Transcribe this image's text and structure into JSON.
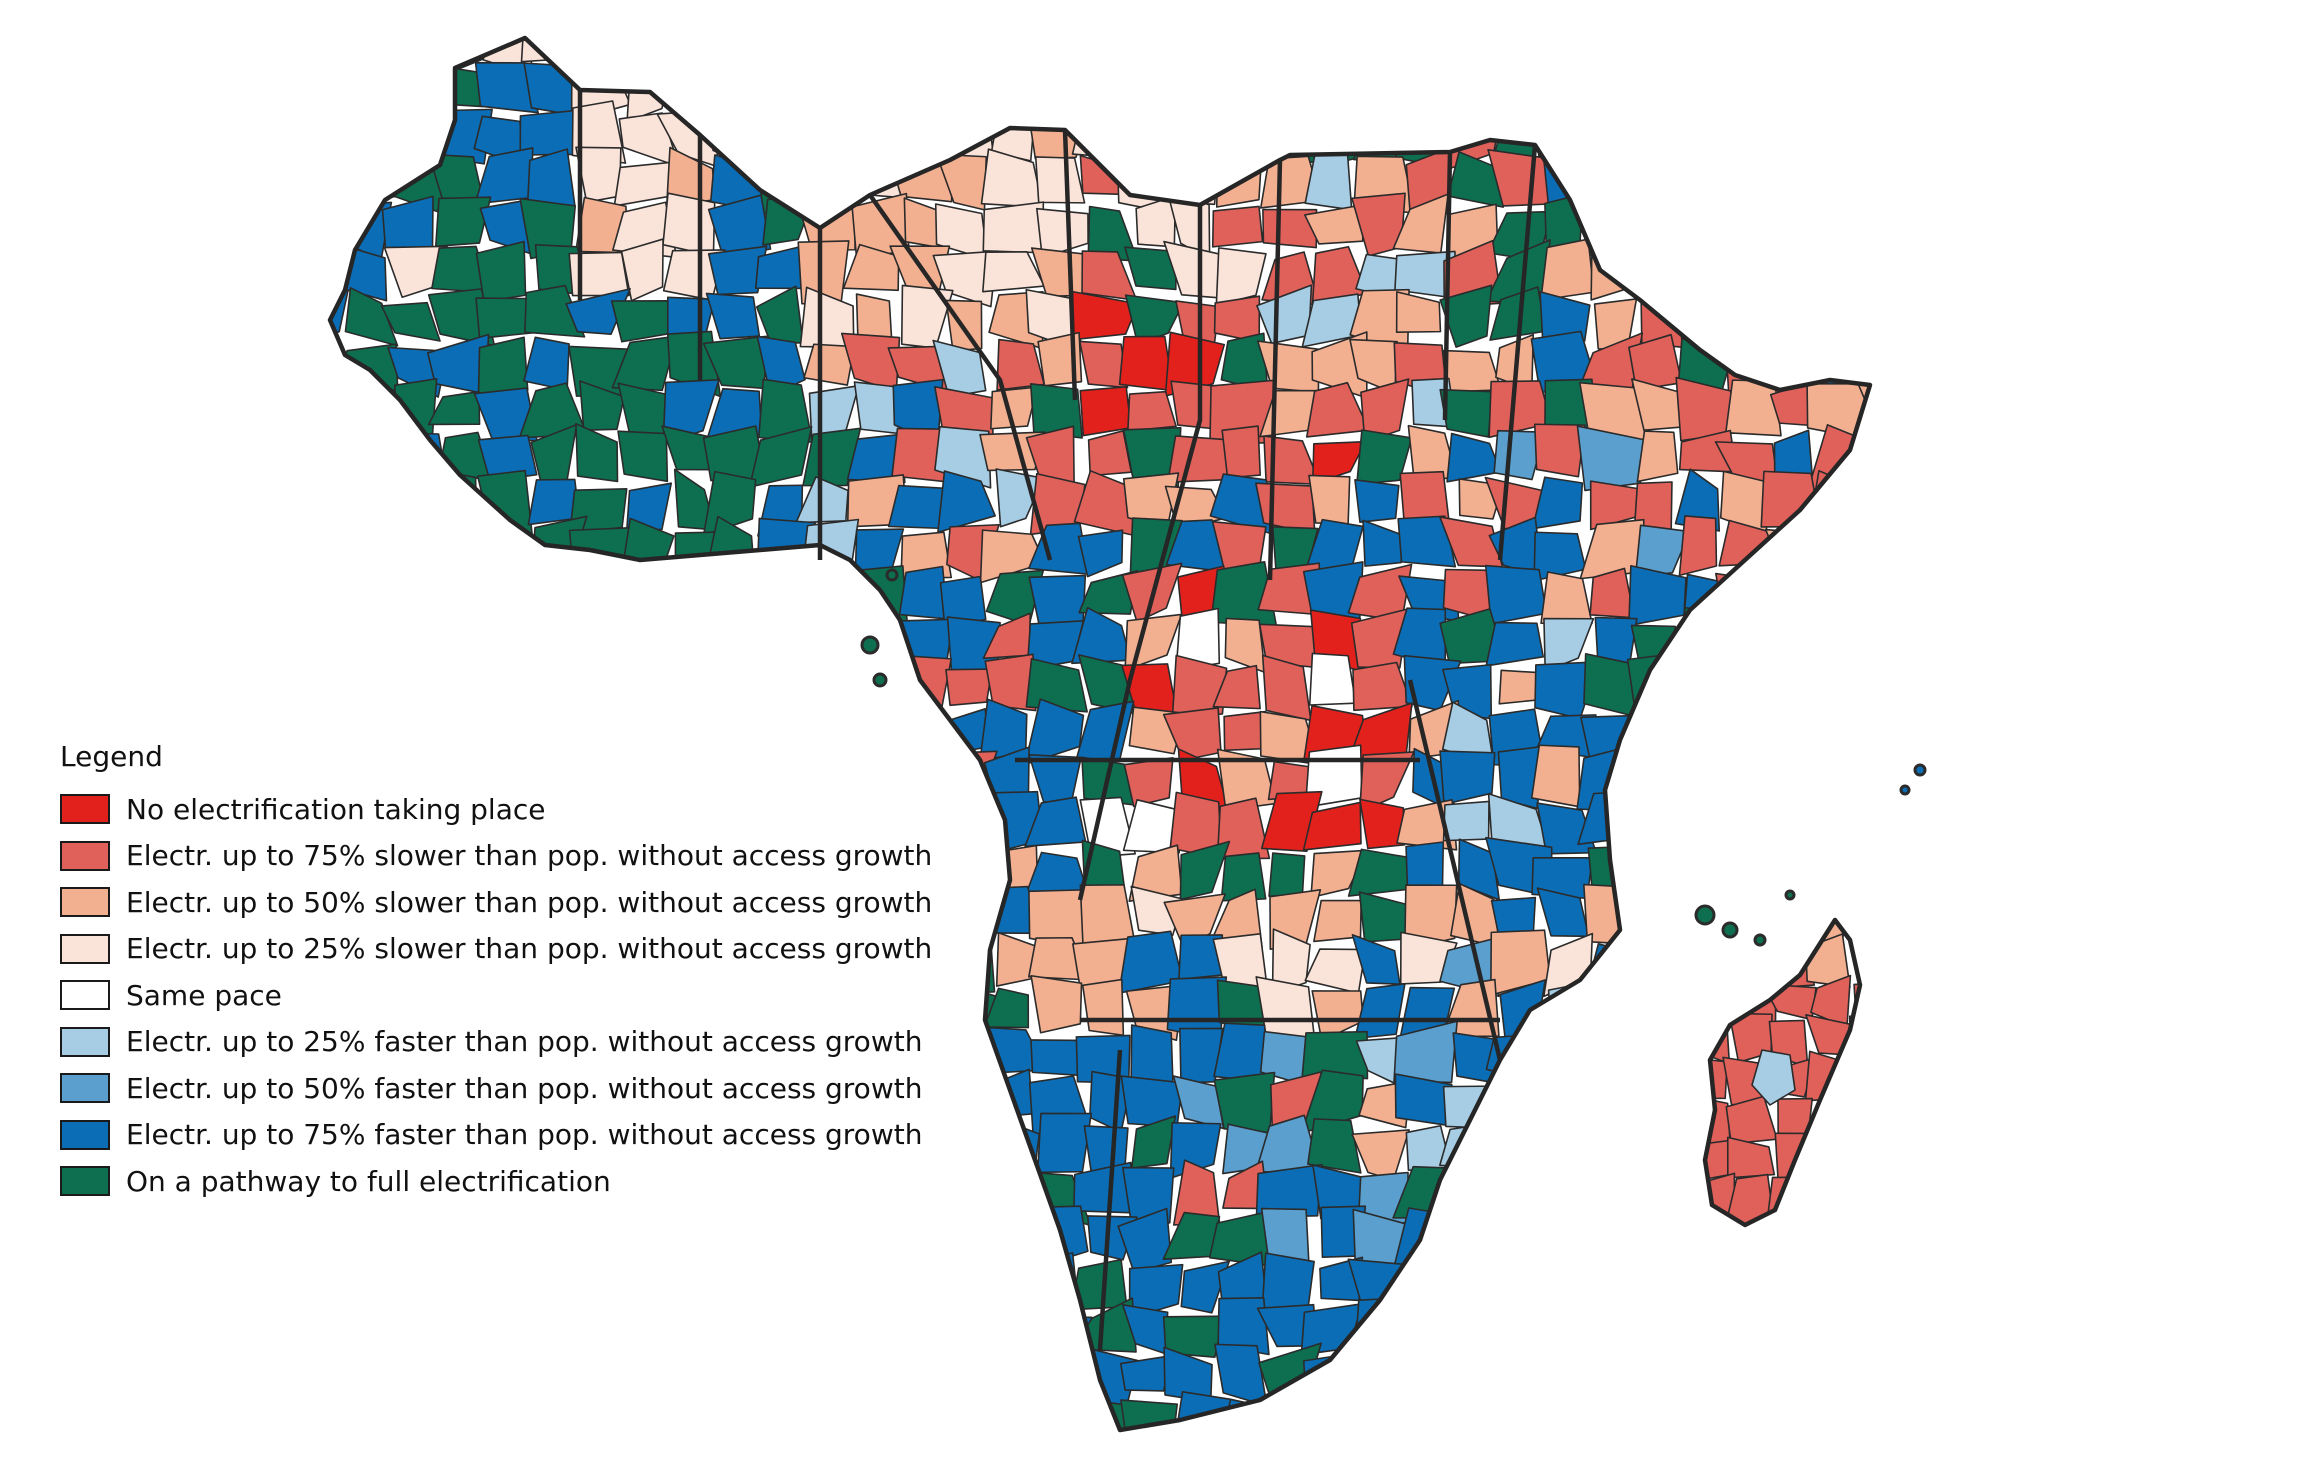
{
  "legend": {
    "title": "Legend",
    "items": [
      {
        "id": "none",
        "label": "No electrification taking place",
        "color": "#e3211c"
      },
      {
        "id": "slow75",
        "label": "Electr. up to 75% slower than pop. without access growth",
        "color": "#e0605a"
      },
      {
        "id": "slow50",
        "label": "Electr. up to 50% slower than pop. without access growth",
        "color": "#f3b091"
      },
      {
        "id": "slow25",
        "label": "Electr. up to 25% slower than pop. without access growth",
        "color": "#fae3d9"
      },
      {
        "id": "same",
        "label": "Same pace",
        "color": "#ffffff"
      },
      {
        "id": "fast25",
        "label": "Electr. up to 25% faster than pop. without access growth",
        "color": "#a6cde4"
      },
      {
        "id": "fast50",
        "label": "Electr. up to 50% faster than pop. without access growth",
        "color": "#5a9fce"
      },
      {
        "id": "fast75",
        "label": "Electr. up to 75% faster than pop. without access growth",
        "color": "#0b6db5"
      },
      {
        "id": "full",
        "label": "On a pathway to full electrification",
        "color": "#0d6f4f"
      }
    ]
  },
  "map": {
    "region": "Sub-Saharan Africa",
    "country_borders": "on",
    "subnational_borders": "on"
  }
}
